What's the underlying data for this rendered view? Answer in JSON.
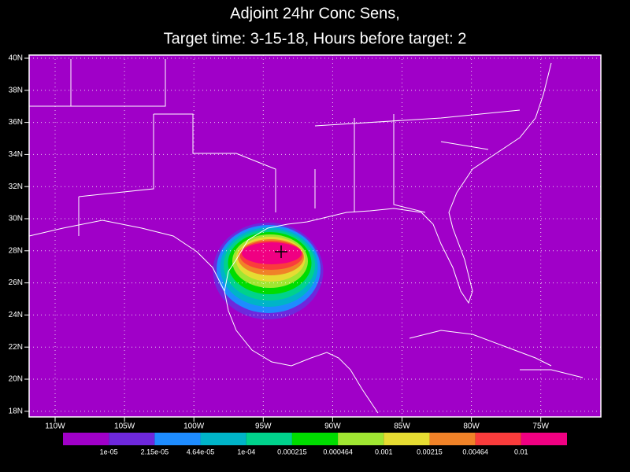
{
  "title": [
    "Adjoint 24hr Conc Sens,",
    "Target time: 3-15-18, Hours before target: 2"
  ],
  "lat_labels": [
    "40N",
    "38N",
    "36N",
    "34N",
    "32N",
    "30N",
    "28N",
    "26N",
    "24N",
    "22N",
    "20N",
    "18N"
  ],
  "lon_labels": [
    "110W",
    "105W",
    "100W",
    "95W",
    "90W",
    "85W",
    "80W",
    "75W"
  ],
  "colorbar": {
    "colors": [
      "#a000c8",
      "#6e28dc",
      "#1e8cff",
      "#00b4c8",
      "#00d28c",
      "#00dc00",
      "#a0e632",
      "#e6dc32",
      "#f08228",
      "#fa3c3c",
      "#f00082"
    ],
    "labels": [
      "1e-05",
      "2.15e-05",
      "4.64e-05",
      "1e-04",
      "0.000215",
      "0.000464",
      "0.001",
      "0.00215",
      "0.00464",
      "0.01"
    ]
  }
}
